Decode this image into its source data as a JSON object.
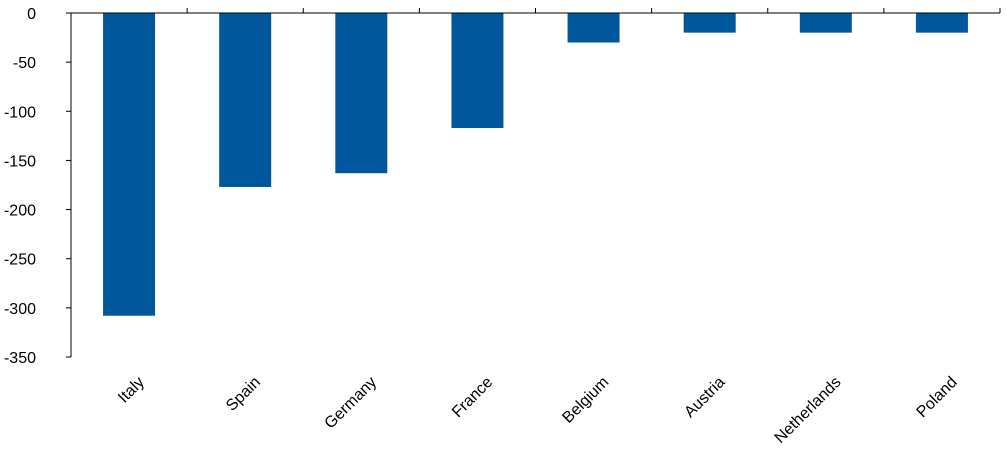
{
  "chart_data": {
    "type": "bar",
    "title": "",
    "xlabel": "",
    "ylabel": "",
    "categories": [
      "Italy",
      "Spain",
      "Germany",
      "France",
      "Belgium",
      "Austria",
      "Netherlands",
      "Poland"
    ],
    "values": [
      -308,
      -177,
      -163,
      -117,
      -30,
      -20,
      -20,
      -20
    ],
    "ylim": [
      -350,
      0
    ],
    "yticks": [
      0,
      -50,
      -100,
      -150,
      -200,
      -250,
      -300,
      -350
    ],
    "x_axis_position": "top",
    "x_tick_label_rotation": "diagonal",
    "grid": false,
    "legend": "none",
    "bar_color": "#00579C",
    "axis_color": "#000000"
  }
}
